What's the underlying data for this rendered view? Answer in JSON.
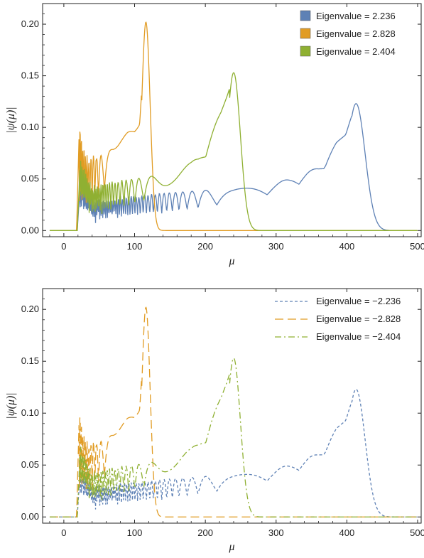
{
  "chart_data": [
    {
      "type": "line",
      "title": "",
      "xlabel": "μ",
      "ylabel": "|ψ(μ)|",
      "xlim": [
        -30,
        505
      ],
      "ylim": [
        -0.006,
        0.22
      ],
      "xticks": [
        0,
        100,
        200,
        300,
        400,
        500
      ],
      "yticks": [
        0.0,
        0.05,
        0.1,
        0.15,
        0.2
      ],
      "ytick_labels": [
        "0.00",
        "0.05",
        "0.10",
        "0.15",
        "0.20"
      ],
      "grid": false,
      "legend": "top-right",
      "series": [
        {
          "name": "Eigenvalue = 2.236",
          "color": "#5E81B5",
          "style": "solid",
          "start": 23,
          "end": 460,
          "peaks": [
            [
              23,
              0.045
            ],
            [
              40,
              0.028
            ],
            [
              60,
              0.03
            ],
            [
              80,
              0.032
            ],
            [
              100,
              0.033
            ],
            [
              120,
              0.034
            ],
            [
              140,
              0.036
            ],
            [
              160,
              0.037
            ],
            [
              180,
              0.038
            ],
            [
              200,
              0.039
            ],
            [
              220,
              0.04
            ],
            [
              240,
              0.041
            ],
            [
              260,
              0.043
            ],
            [
              280,
              0.045
            ],
            [
              300,
              0.047
            ],
            [
              320,
              0.05
            ],
            [
              340,
              0.055
            ],
            [
              360,
              0.062
            ],
            [
              370,
              0.067
            ],
            [
              385,
              0.085
            ],
            [
              398,
              0.095
            ],
            [
              413,
              0.123
            ]
          ]
        },
        {
          "name": "Eigenvalue = 2.828",
          "color": "#E19C24",
          "style": "solid",
          "start": 20,
          "end": 138,
          "peaks": [
            [
              22,
              0.104
            ],
            [
              30,
              0.068
            ],
            [
              40,
              0.07
            ],
            [
              50,
              0.072
            ],
            [
              60,
              0.075
            ],
            [
              70,
              0.08
            ],
            [
              80,
              0.088
            ],
            [
              90,
              0.095
            ],
            [
              100,
              0.1
            ],
            [
              107,
              0.11
            ],
            [
              116,
              0.202
            ]
          ]
        },
        {
          "name": "Eigenvalue = 2.404",
          "color": "#8FB032",
          "style": "solid",
          "start": 22,
          "end": 275,
          "peaks": [
            [
              23,
              0.065
            ],
            [
              40,
              0.042
            ],
            [
              60,
              0.045
            ],
            [
              80,
              0.048
            ],
            [
              100,
              0.05
            ],
            [
              120,
              0.052
            ],
            [
              140,
              0.055
            ],
            [
              160,
              0.06
            ],
            [
              180,
              0.066
            ],
            [
              190,
              0.072
            ],
            [
              200,
              0.082
            ],
            [
              212,
              0.1
            ],
            [
              222,
              0.115
            ],
            [
              240,
              0.153
            ]
          ]
        }
      ]
    },
    {
      "type": "line",
      "title": "",
      "xlabel": "μ",
      "ylabel": "|ψ(μ)|",
      "xlim": [
        -30,
        505
      ],
      "ylim": [
        -0.006,
        0.22
      ],
      "xticks": [
        0,
        100,
        200,
        300,
        400,
        500
      ],
      "yticks": [
        0.0,
        0.05,
        0.1,
        0.15,
        0.2
      ],
      "ytick_labels": [
        "0.00",
        "0.05",
        "0.10",
        "0.15",
        "0.20"
      ],
      "grid": false,
      "legend": "top-right",
      "series": [
        {
          "name": "Eigenvalue = −2.236",
          "color": "#5E81B5",
          "style": "short-dash",
          "start": 23,
          "end": 460,
          "peaks": [
            [
              23,
              0.045
            ],
            [
              40,
              0.028
            ],
            [
              60,
              0.03
            ],
            [
              80,
              0.032
            ],
            [
              100,
              0.033
            ],
            [
              120,
              0.034
            ],
            [
              140,
              0.036
            ],
            [
              160,
              0.037
            ],
            [
              180,
              0.038
            ],
            [
              200,
              0.039
            ],
            [
              220,
              0.04
            ],
            [
              240,
              0.041
            ],
            [
              260,
              0.043
            ],
            [
              280,
              0.045
            ],
            [
              300,
              0.047
            ],
            [
              320,
              0.05
            ],
            [
              340,
              0.055
            ],
            [
              360,
              0.062
            ],
            [
              370,
              0.067
            ],
            [
              385,
              0.085
            ],
            [
              398,
              0.095
            ],
            [
              413,
              0.123
            ]
          ]
        },
        {
          "name": "Eigenvalue = −2.828",
          "color": "#E19C24",
          "style": "long-dash",
          "start": 20,
          "end": 138,
          "peaks": [
            [
              22,
              0.104
            ],
            [
              30,
              0.068
            ],
            [
              40,
              0.07
            ],
            [
              50,
              0.072
            ],
            [
              60,
              0.075
            ],
            [
              70,
              0.08
            ],
            [
              80,
              0.088
            ],
            [
              90,
              0.095
            ],
            [
              100,
              0.1
            ],
            [
              107,
              0.11
            ],
            [
              116,
              0.202
            ]
          ]
        },
        {
          "name": "Eigenvalue = −2.404",
          "color": "#8FB032",
          "style": "dash-dot",
          "start": 22,
          "end": 275,
          "peaks": [
            [
              23,
              0.065
            ],
            [
              40,
              0.042
            ],
            [
              60,
              0.045
            ],
            [
              80,
              0.048
            ],
            [
              100,
              0.05
            ],
            [
              120,
              0.052
            ],
            [
              140,
              0.055
            ],
            [
              160,
              0.06
            ],
            [
              180,
              0.066
            ],
            [
              190,
              0.072
            ],
            [
              200,
              0.082
            ],
            [
              212,
              0.1
            ],
            [
              222,
              0.115
            ],
            [
              240,
              0.153
            ]
          ]
        }
      ]
    }
  ]
}
